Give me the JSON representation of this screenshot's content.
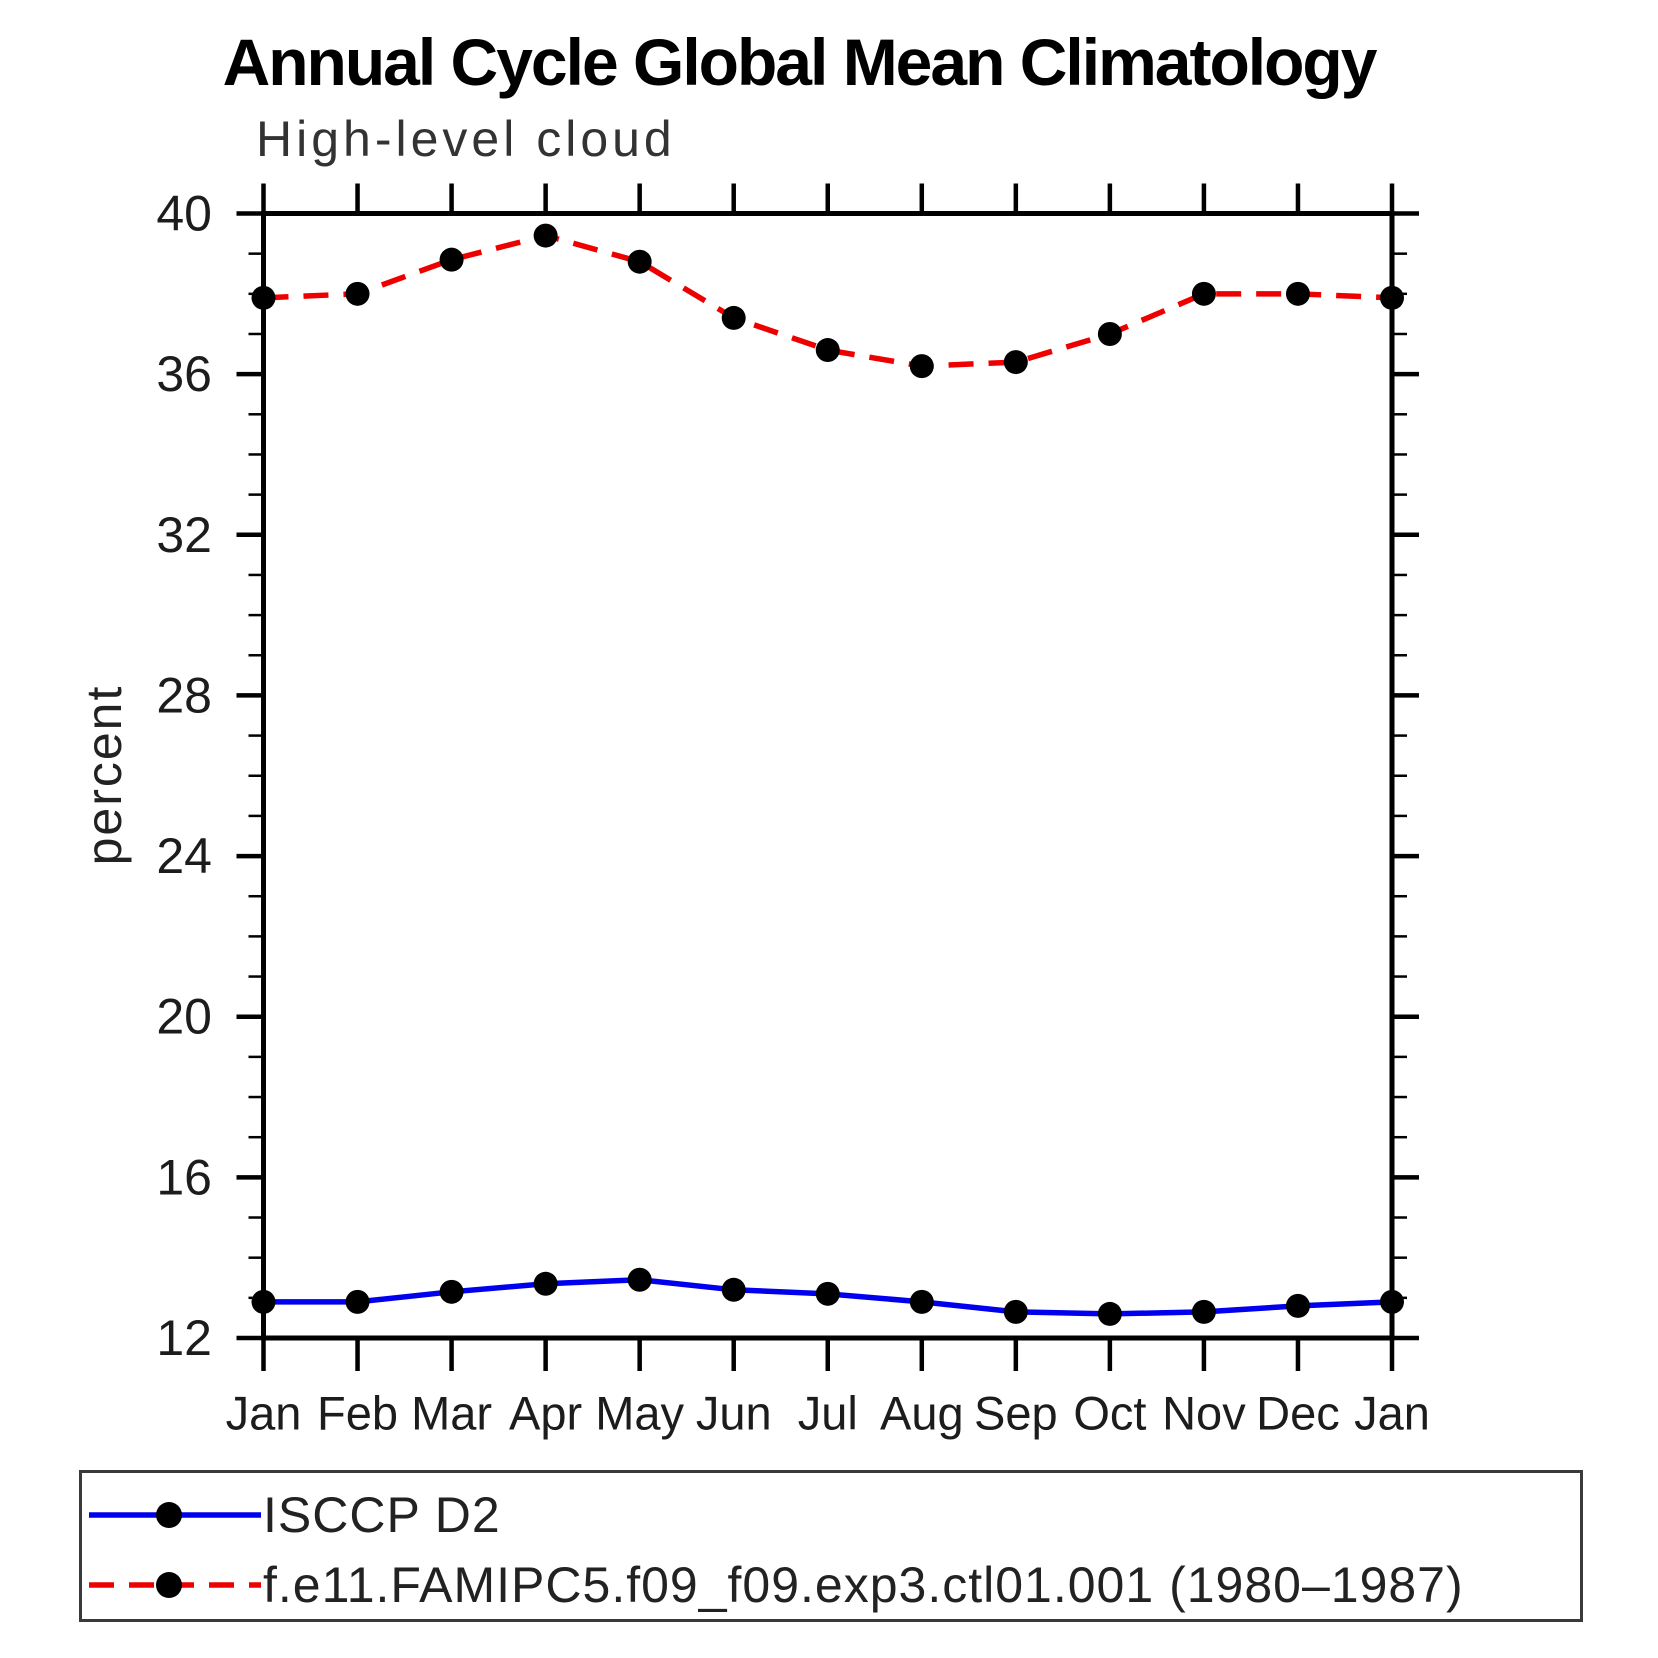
{
  "chart_data": {
    "type": "line",
    "title": "Annual Cycle Global Mean Climatology",
    "subtitle": "High-level cloud",
    "xlabel": "",
    "ylabel": "percent",
    "ylim": [
      12,
      40
    ],
    "ytick_major": 4,
    "ytick_minor": 1,
    "grid": false,
    "legend_position": "bottom",
    "categories": [
      "Jan",
      "Feb",
      "Mar",
      "Apr",
      "May",
      "Jun",
      "Jul",
      "Aug",
      "Sep",
      "Oct",
      "Nov",
      "Dec",
      "Jan"
    ],
    "series": [
      {
        "name": "ISCCP D2",
        "color": "#0000ee",
        "line_style": "solid",
        "values": [
          12.9,
          12.9,
          13.15,
          13.35,
          13.45,
          13.2,
          13.1,
          12.9,
          12.65,
          12.6,
          12.65,
          12.8,
          12.9
        ]
      },
      {
        "name": "f.e11.FAMIPC5.f09_f09.exp3.ctl01.001 (1980–1987)",
        "color": "#ee0000",
        "line_style": "dashed",
        "values": [
          37.9,
          38.0,
          38.85,
          39.45,
          38.8,
          37.4,
          36.6,
          36.2,
          36.3,
          37.0,
          38.0,
          38.0,
          37.9
        ]
      }
    ],
    "marker": "filled-circle",
    "marker_color": "#000000",
    "colors": {
      "frame": "#000000",
      "tick_text": "#1c1c1c"
    }
  }
}
